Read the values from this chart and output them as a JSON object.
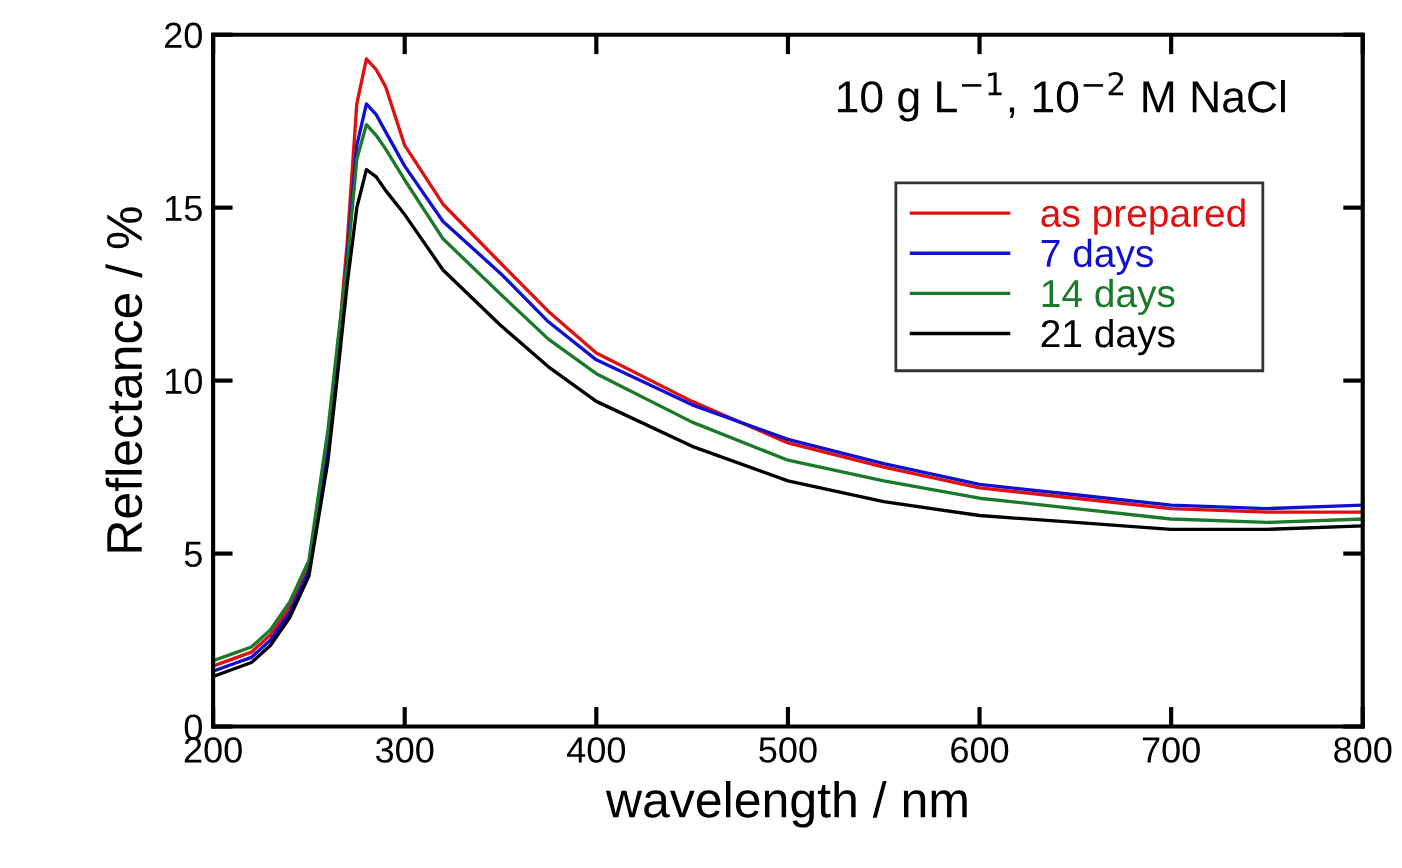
{
  "chart_data": {
    "type": "line",
    "xlabel": "wavelength / nm",
    "ylabel": "Reflectance / %",
    "annotations": [
      "10 g L$^{−1}$, 10$^{−2}$ M NaCl"
    ],
    "x": [
      200,
      210,
      220,
      230,
      240,
      250,
      260,
      265,
      270,
      275,
      280,
      285,
      290,
      300,
      320,
      350,
      375,
      400,
      450,
      500,
      550,
      600,
      650,
      700,
      750,
      800
    ],
    "series": [
      {
        "name": "as prepared",
        "color": "#e01010",
        "values": [
          1.75,
          1.95,
          2.15,
          2.65,
          3.45,
          4.65,
          8.3,
          10.8,
          14.0,
          18.0,
          19.3,
          19.0,
          18.5,
          16.8,
          15.1,
          13.4,
          12.0,
          10.8,
          9.4,
          8.2,
          7.5,
          6.9,
          6.6,
          6.3,
          6.2,
          6.2
        ]
      },
      {
        "name": "7 days",
        "color": "#1010d0",
        "values": [
          1.6,
          1.8,
          2.0,
          2.5,
          3.3,
          4.5,
          8.0,
          10.5,
          13.6,
          16.8,
          18.0,
          17.7,
          17.2,
          16.2,
          14.6,
          13.1,
          11.7,
          10.6,
          9.3,
          8.3,
          7.6,
          7.0,
          6.7,
          6.4,
          6.3,
          6.4
        ]
      },
      {
        "name": "14 days",
        "color": "#1a7a2a",
        "values": [
          1.9,
          2.1,
          2.3,
          2.8,
          3.6,
          4.8,
          8.6,
          11.1,
          13.4,
          16.4,
          17.4,
          17.1,
          16.7,
          15.8,
          14.1,
          12.5,
          11.2,
          10.2,
          8.8,
          7.7,
          7.1,
          6.6,
          6.3,
          6.0,
          5.9,
          6.0
        ]
      },
      {
        "name": "21 days",
        "color": "#000000",
        "values": [
          1.45,
          1.65,
          1.85,
          2.35,
          3.15,
          4.35,
          7.7,
          10.2,
          12.8,
          15.0,
          16.1,
          15.9,
          15.5,
          14.8,
          13.2,
          11.6,
          10.4,
          9.4,
          8.1,
          7.1,
          6.5,
          6.1,
          5.9,
          5.7,
          5.7,
          5.8
        ]
      }
    ],
    "xlim": [
      200,
      800
    ],
    "ylim": [
      0,
      20
    ],
    "xticks": [
      200,
      300,
      400,
      500,
      600,
      700,
      800
    ],
    "yticks": [
      0,
      5,
      10,
      15,
      20
    ],
    "legend": "right",
    "grid": false,
    "marker": "none",
    "line_style": "solid"
  }
}
